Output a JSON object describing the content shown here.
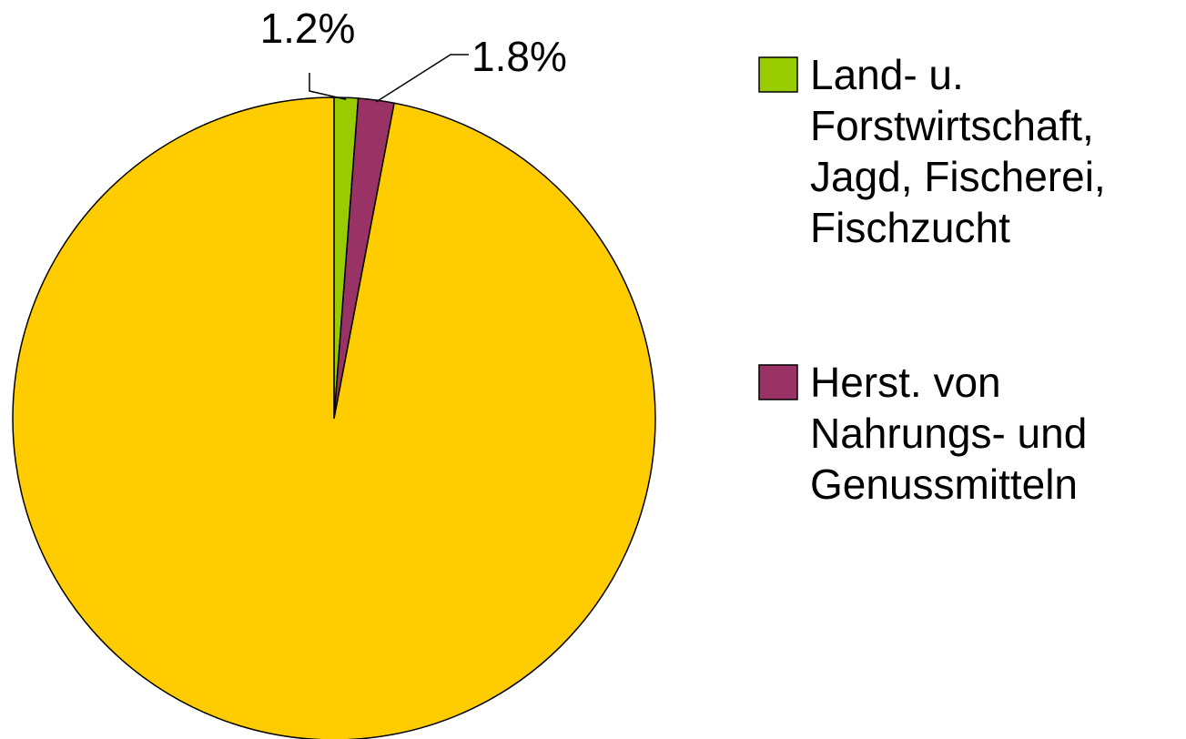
{
  "chart_data": {
    "type": "pie",
    "categories": [
      "Land- u. Forstwirtschaft, Jagd, Fischerei, Fischzucht",
      "Herst. von Nahrungs- und Genussmitteln",
      null
    ],
    "values": [
      1.2,
      1.8,
      97
    ],
    "value_labels": [
      "1.2%",
      "1.8%",
      null
    ],
    "colors": [
      "#99cc00",
      "#993366",
      "#ffcc00"
    ],
    "legend": "right"
  }
}
